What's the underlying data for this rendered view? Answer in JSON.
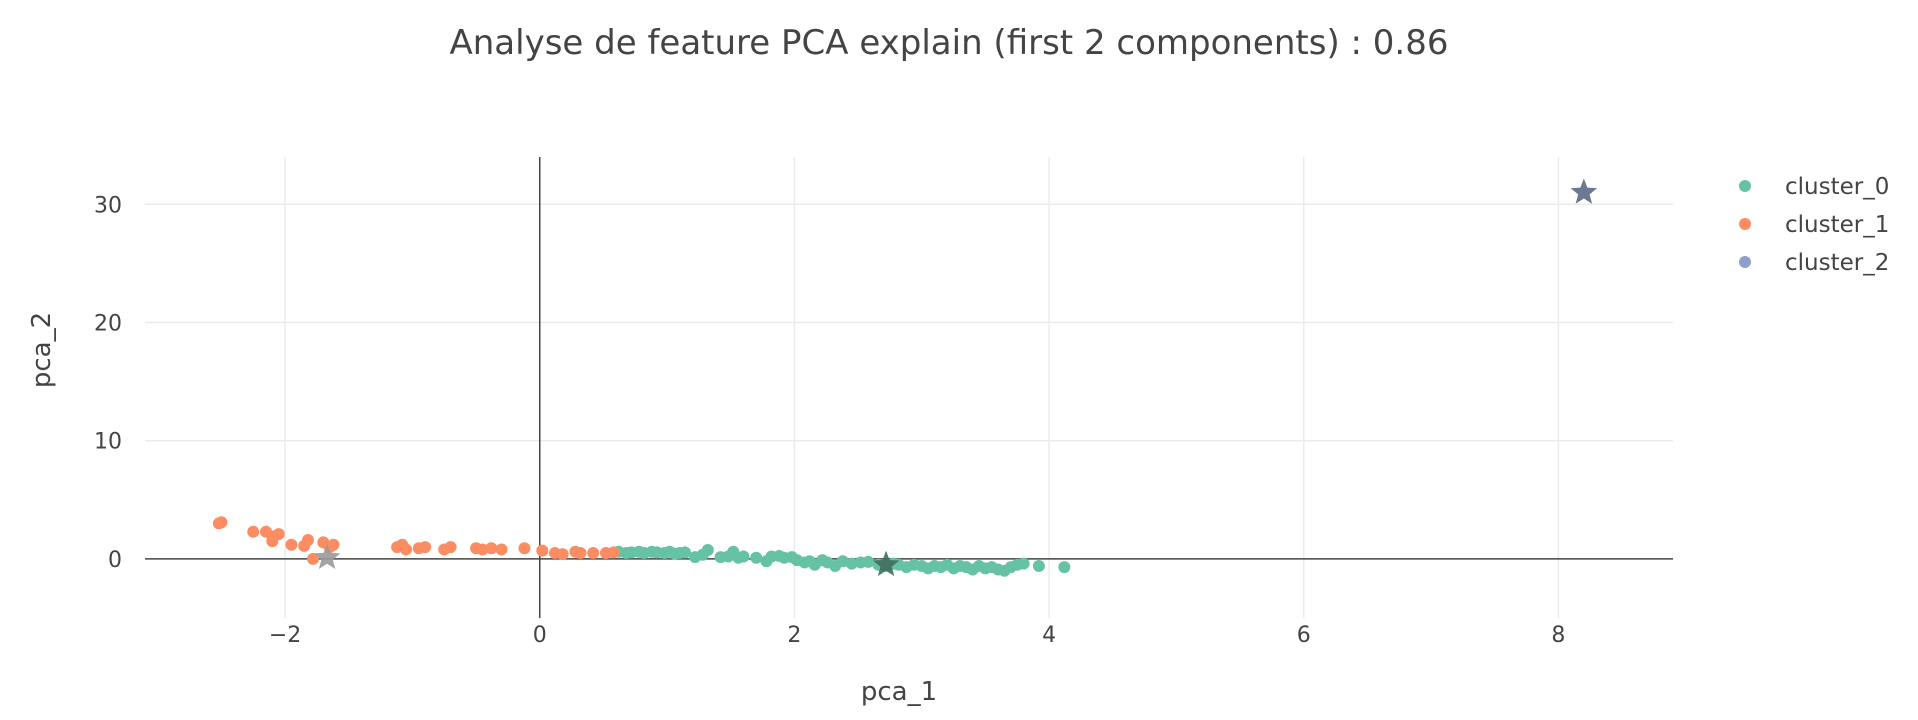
{
  "chart_data": {
    "type": "scatter",
    "title": "Analyse de feature PCA explain (first 2 components) : 0.86",
    "xlabel": "pca_1",
    "ylabel": "pca_2",
    "xlim": [
      -3.1,
      8.9
    ],
    "ylim": [
      -5,
      34
    ],
    "xticks": [
      -2,
      0,
      2,
      4,
      6,
      8
    ],
    "xtick_labels": [
      "−2",
      "0",
      "2",
      "4",
      "6",
      "8"
    ],
    "yticks": [
      0,
      10,
      20,
      30
    ],
    "ytick_labels": [
      "0",
      "10",
      "20",
      "30"
    ],
    "grid": true,
    "zero_lines": true,
    "legend_position": "top-right",
    "series": [
      {
        "name": "cluster_0",
        "color": "#66c2a5",
        "points": [
          [
            0.62,
            0.6
          ],
          [
            0.68,
            0.5
          ],
          [
            0.72,
            0.55
          ],
          [
            0.78,
            0.6
          ],
          [
            0.82,
            0.5
          ],
          [
            0.88,
            0.6
          ],
          [
            0.92,
            0.55
          ],
          [
            0.98,
            0.5
          ],
          [
            1.02,
            0.6
          ],
          [
            1.06,
            0.45
          ],
          [
            1.1,
            0.5
          ],
          [
            1.14,
            0.55
          ],
          [
            1.22,
            0.15
          ],
          [
            1.28,
            0.35
          ],
          [
            1.32,
            0.75
          ],
          [
            1.42,
            0.15
          ],
          [
            1.48,
            0.2
          ],
          [
            1.52,
            0.6
          ],
          [
            1.56,
            0.1
          ],
          [
            1.6,
            0.2
          ],
          [
            1.7,
            0.1
          ],
          [
            1.78,
            -0.2
          ],
          [
            1.82,
            0.2
          ],
          [
            1.88,
            0.25
          ],
          [
            1.92,
            0.1
          ],
          [
            1.98,
            0.15
          ],
          [
            2.02,
            -0.1
          ],
          [
            2.08,
            -0.3
          ],
          [
            2.12,
            -0.2
          ],
          [
            2.16,
            -0.5
          ],
          [
            2.22,
            -0.1
          ],
          [
            2.26,
            -0.3
          ],
          [
            2.32,
            -0.6
          ],
          [
            2.38,
            -0.2
          ],
          [
            2.45,
            -0.4
          ],
          [
            2.52,
            -0.3
          ],
          [
            2.58,
            -0.25
          ],
          [
            2.66,
            -0.5
          ],
          [
            2.72,
            -0.6
          ],
          [
            2.78,
            -0.4
          ],
          [
            2.82,
            -0.5
          ],
          [
            2.88,
            -0.7
          ],
          [
            2.94,
            -0.5
          ],
          [
            3.0,
            -0.6
          ],
          [
            3.05,
            -0.8
          ],
          [
            3.1,
            -0.6
          ],
          [
            3.15,
            -0.7
          ],
          [
            3.2,
            -0.5
          ],
          [
            3.25,
            -0.8
          ],
          [
            3.3,
            -0.6
          ],
          [
            3.35,
            -0.7
          ],
          [
            3.4,
            -0.9
          ],
          [
            3.45,
            -0.6
          ],
          [
            3.5,
            -0.8
          ],
          [
            3.55,
            -0.7
          ],
          [
            3.6,
            -0.9
          ],
          [
            3.65,
            -1.0
          ],
          [
            3.7,
            -0.7
          ],
          [
            3.75,
            -0.5
          ],
          [
            3.8,
            -0.4
          ],
          [
            3.92,
            -0.6
          ],
          [
            4.12,
            -0.7
          ]
        ]
      },
      {
        "name": "cluster_1",
        "color": "#fc8d62",
        "points": [
          [
            -2.5,
            3.1
          ],
          [
            -2.52,
            3.0
          ],
          [
            -2.25,
            2.3
          ],
          [
            -2.15,
            2.3
          ],
          [
            -2.1,
            1.9
          ],
          [
            -2.05,
            2.1
          ],
          [
            -2.1,
            1.5
          ],
          [
            -1.95,
            1.2
          ],
          [
            -1.85,
            1.1
          ],
          [
            -1.82,
            1.6
          ],
          [
            -1.78,
            0.0
          ],
          [
            -1.7,
            1.4
          ],
          [
            -1.65,
            1.0
          ],
          [
            -1.62,
            1.2
          ],
          [
            -1.12,
            1.0
          ],
          [
            -1.08,
            1.2
          ],
          [
            -1.05,
            0.8
          ],
          [
            -0.95,
            0.9
          ],
          [
            -0.9,
            1.0
          ],
          [
            -0.75,
            0.8
          ],
          [
            -0.7,
            1.0
          ],
          [
            -0.5,
            0.9
          ],
          [
            -0.45,
            0.8
          ],
          [
            -0.38,
            0.9
          ],
          [
            -0.3,
            0.8
          ],
          [
            -0.12,
            0.9
          ],
          [
            0.02,
            0.7
          ],
          [
            0.12,
            0.5
          ],
          [
            0.18,
            0.4
          ],
          [
            0.28,
            0.6
          ],
          [
            0.32,
            0.5
          ],
          [
            0.42,
            0.5
          ],
          [
            0.52,
            0.5
          ],
          [
            0.58,
            0.55
          ]
        ]
      },
      {
        "name": "cluster_2",
        "color": "#8da0cb",
        "points": []
      }
    ],
    "centroids": [
      {
        "cluster": "cluster_0",
        "x": 2.72,
        "y": -0.5,
        "color": "#3f6e5e"
      },
      {
        "cluster": "cluster_1",
        "x": -1.67,
        "y": 0.1,
        "color": "#9a9a9a"
      },
      {
        "cluster": "cluster_2",
        "x": 8.2,
        "y": 31.0,
        "color": "#5c6a85"
      }
    ]
  }
}
